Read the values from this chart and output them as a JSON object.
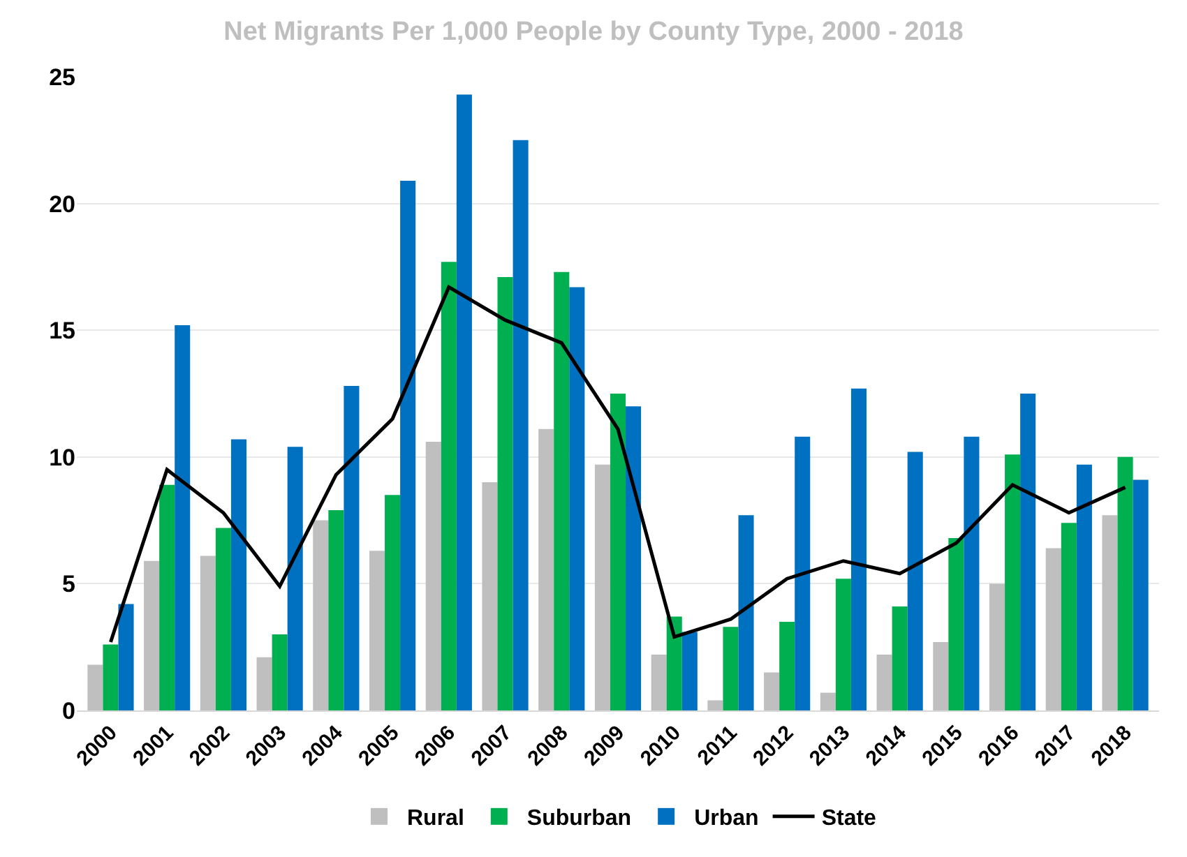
{
  "chart_data": {
    "type": "bar",
    "title": "Net Migrants Per 1,000 People by County Type, 2000 - 2018",
    "categories": [
      "2000",
      "2001",
      "2002",
      "2003",
      "2004",
      "2005",
      "2006",
      "2007",
      "2008",
      "2009",
      "2010",
      "2011",
      "2012",
      "2013",
      "2014",
      "2015",
      "2016",
      "2017",
      "2018"
    ],
    "series": [
      {
        "name": "Rural",
        "color": "#bfbfbf",
        "values": [
          1.8,
          5.9,
          6.1,
          2.1,
          7.5,
          6.3,
          10.6,
          9.0,
          11.1,
          9.7,
          2.2,
          0.4,
          1.5,
          0.7,
          2.2,
          2.7,
          5.0,
          6.4,
          7.7
        ]
      },
      {
        "name": "Suburban",
        "color": "#00b050",
        "values": [
          2.6,
          8.9,
          7.2,
          3.0,
          7.9,
          8.5,
          17.7,
          17.1,
          17.3,
          12.5,
          3.7,
          3.3,
          3.5,
          5.2,
          4.1,
          6.8,
          10.1,
          7.4,
          10.0
        ]
      },
      {
        "name": "Urban",
        "color": "#0070c0",
        "values": [
          4.2,
          15.2,
          10.7,
          10.4,
          12.8,
          20.9,
          24.3,
          22.5,
          16.7,
          12.0,
          3.1,
          7.7,
          10.8,
          12.7,
          10.2,
          10.8,
          12.5,
          9.7,
          9.1
        ]
      },
      {
        "name": "State",
        "type": "line",
        "color": "#000000",
        "values": [
          2.7,
          9.5,
          7.8,
          4.9,
          9.3,
          11.5,
          16.7,
          15.4,
          14.5,
          11.1,
          2.9,
          3.6,
          5.2,
          5.9,
          5.4,
          6.6,
          8.9,
          7.8,
          8.8
        ]
      }
    ],
    "ylim": [
      0,
      25
    ],
    "yticks": [
      0,
      5,
      10,
      15,
      20,
      25
    ],
    "grid": "y",
    "legend": "bottom"
  }
}
